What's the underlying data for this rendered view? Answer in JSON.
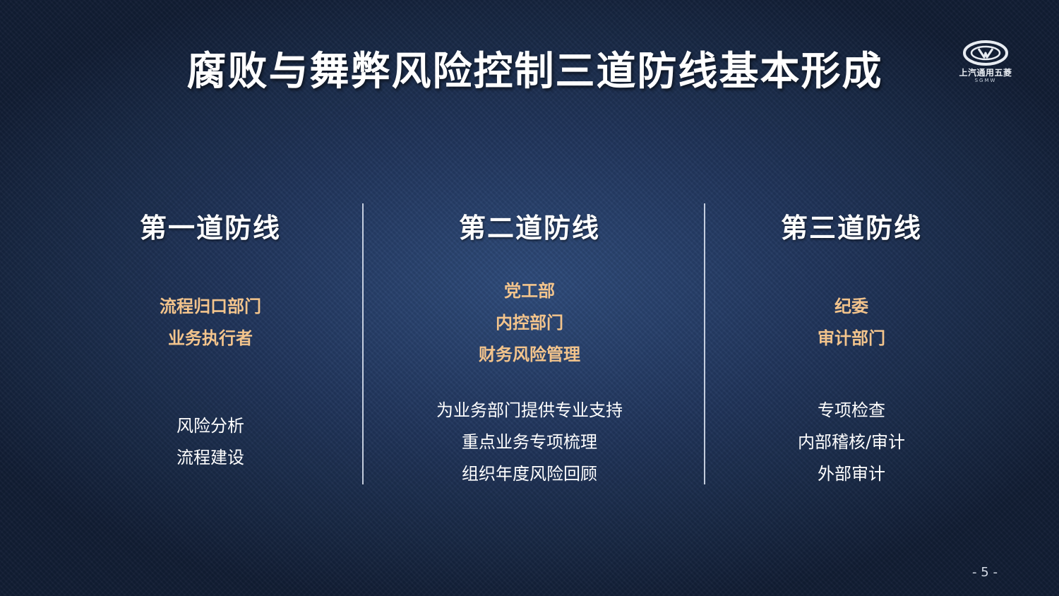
{
  "slide": {
    "title": "腐败与舞弊风险控制三道防线基本形成",
    "page_number": "- 5 -"
  },
  "logo": {
    "icon": "sgmw-logo-icon",
    "name_cn": "上汽通用五菱",
    "name_en": "SGMW"
  },
  "columns": [
    {
      "heading": "第一道防线",
      "owners": [
        "流程归口部门",
        "业务执行者"
      ],
      "tasks": [
        "风险分析",
        "流程建设"
      ]
    },
    {
      "heading": "第二道防线",
      "owners": [
        "党工部",
        "内控部门",
        "财务风险管理"
      ],
      "tasks": [
        "为业务部门提供专业支持",
        "重点业务专项梳理",
        "组织年度风险回顾"
      ]
    },
    {
      "heading": "第三道防线",
      "owners": [
        "纪委",
        "审计部门"
      ],
      "tasks": [
        "专项检查",
        "内部稽核/审计",
        "外部审计"
      ]
    }
  ]
}
